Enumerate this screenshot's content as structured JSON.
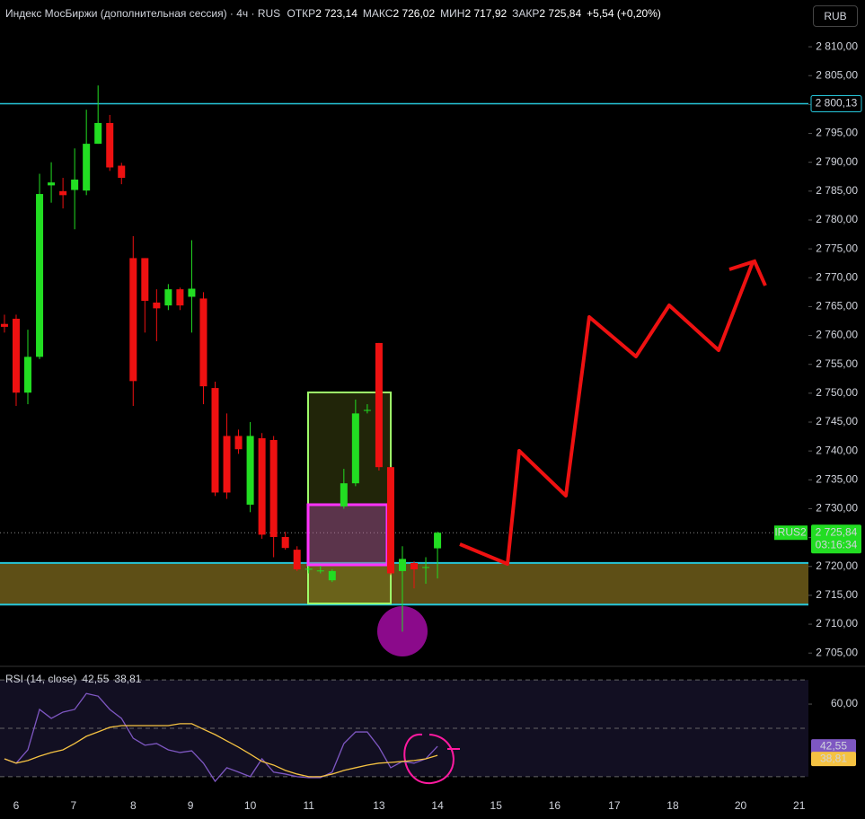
{
  "header": {
    "title": "Индекс МосБиржи (дополнительная сессия) · 4ч · RUS",
    "ohlc": [
      {
        "label": "ОТКР",
        "value": "2 723,14"
      },
      {
        "label": "МАКС",
        "value": "2 726,02"
      },
      {
        "label": "МИН",
        "value": "2 717,92"
      },
      {
        "label": "ЗАКР",
        "value": "2 725,84"
      }
    ],
    "change": "+5,54 (+0,20%)",
    "currency": "RUB"
  },
  "chart_data": [
    {
      "type": "candlestick",
      "x": [
        0,
        1,
        2,
        3,
        4,
        5,
        6,
        7,
        8,
        9,
        10,
        11,
        12,
        13,
        14,
        15,
        16,
        17,
        18,
        19,
        20,
        21,
        22,
        23,
        24,
        25,
        26,
        27,
        28,
        29,
        30,
        31,
        32,
        33,
        34,
        35,
        36,
        37
      ],
      "open": [
        2762.0,
        2762.9,
        2750.1,
        2756.3,
        2786.0,
        2785.0,
        2785.2,
        2785.1,
        2793.2,
        2796.8,
        2789.4,
        2773.4,
        2773.4,
        2765.7,
        2765.2,
        2768.0,
        2766.7,
        2766.4,
        2750.9,
        2742.6,
        2742.6,
        2730.7,
        2742.2,
        2741.9,
        2725.1,
        2722.9,
        2719.5,
        2719.2,
        2717.6,
        2730.4,
        2734.4,
        2747.0,
        2758.7,
        2737.2,
        2719.2,
        2720.6,
        2719.8,
        2723.14
      ],
      "high": [
        2763.6,
        2763.6,
        2761.0,
        2788.0,
        2790.0,
        2787.3,
        2792.4,
        2799.1,
        2803.3,
        2798.2,
        2789.9,
        2777.2,
        2773.4,
        2768.0,
        2768.9,
        2768.3,
        2776.5,
        2767.5,
        2752.0,
        2746.5,
        2743.7,
        2745.0,
        2743.1,
        2742.6,
        2726.0,
        2723.5,
        2720.1,
        2720.1,
        2719.5,
        2736.9,
        2748.9,
        2748.1,
        2758.7,
        2737.2,
        2723.5,
        2720.9,
        2721.6,
        2726.02
      ],
      "low": [
        2760.5,
        2747.8,
        2748.1,
        2755.9,
        2783.0,
        2782.0,
        2778.4,
        2784.3,
        2793.2,
        2788.5,
        2786.2,
        2747.8,
        2760.5,
        2759.0,
        2764.4,
        2764.4,
        2760.5,
        2748.1,
        2732.2,
        2731.7,
        2739.5,
        2729.4,
        2724.8,
        2721.6,
        2722.9,
        2719.2,
        2718.8,
        2718.8,
        2717.3,
        2730.0,
        2733.9,
        2746.5,
        2736.6,
        2718.5,
        2708.7,
        2716.2,
        2717.0,
        2717.92
      ],
      "close": [
        2761.5,
        2750.1,
        2756.3,
        2784.5,
        2786.5,
        2784.3,
        2787.0,
        2793.2,
        2796.8,
        2789.1,
        2787.3,
        2752.1,
        2766.0,
        2764.7,
        2768.0,
        2765.2,
        2768.1,
        2751.2,
        2732.8,
        2732.8,
        2740.3,
        2742.6,
        2725.5,
        2725.1,
        2723.2,
        2719.5,
        2719.6,
        2719.3,
        2719.2,
        2734.4,
        2746.5,
        2747.1,
        2737.2,
        2718.8,
        2721.3,
        2719.5,
        2719.9,
        2725.84
      ],
      "up_color": "#22dd22",
      "down_color": "#ee1111",
      "xlim": [
        -0.38,
        68.69
      ],
      "ylim": [
        2702.7,
        2818.1
      ],
      "xticks": [
        {
          "value": 1.0,
          "label": "6"
        },
        {
          "value": 5.9,
          "label": "7"
        },
        {
          "value": 11.0,
          "label": "8"
        },
        {
          "value": 15.9,
          "label": "9"
        },
        {
          "value": 21.0,
          "label": "10"
        },
        {
          "value": 26.0,
          "label": "11"
        },
        {
          "value": 32.0,
          "label": "13"
        },
        {
          "value": 37.0,
          "label": "14"
        },
        {
          "value": 42.0,
          "label": "15"
        },
        {
          "value": 47.0,
          "label": "16"
        },
        {
          "value": 52.1,
          "label": "17"
        },
        {
          "value": 57.1,
          "label": "18"
        },
        {
          "value": 62.9,
          "label": "20"
        },
        {
          "value": 67.9,
          "label": "21"
        }
      ],
      "yticks": [
        {
          "value": 2705,
          "label": "2 705,00"
        },
        {
          "value": 2710,
          "label": "2 710,00"
        },
        {
          "value": 2715,
          "label": "2 715,00"
        },
        {
          "value": 2720,
          "label": "2 720,00"
        },
        {
          "value": 2725,
          "label": "2 725,00"
        },
        {
          "value": 2730,
          "label": "2 730,00"
        },
        {
          "value": 2735,
          "label": "2 735,00"
        },
        {
          "value": 2740,
          "label": "2 740,00"
        },
        {
          "value": 2745,
          "label": "2 745,00"
        },
        {
          "value": 2750,
          "label": "2 750,00"
        },
        {
          "value": 2755,
          "label": "2 755,00"
        },
        {
          "value": 2760,
          "label": "2 760,00"
        },
        {
          "value": 2765,
          "label": "2 765,00"
        },
        {
          "value": 2770,
          "label": "2 770,00"
        },
        {
          "value": 2775,
          "label": "2 775,00"
        },
        {
          "value": 2780,
          "label": "2 780,00"
        },
        {
          "value": 2785,
          "label": "2 785,00"
        },
        {
          "value": 2790,
          "label": "2 790,00"
        },
        {
          "value": 2795,
          "label": "2 795,00"
        },
        {
          "value": 2800,
          "label": "2 800,00"
        },
        {
          "value": 2805,
          "label": "2 805,00"
        },
        {
          "value": 2810,
          "label": "2 810,00"
        }
      ],
      "level": {
        "value": 2800.13,
        "label": "2 800,13",
        "color": "#26c6da"
      },
      "zone": {
        "values": [
          2713.4,
          2720.6
        ],
        "color": "#26c6da"
      },
      "last_price": {
        "value": 2725.84,
        "label": "2 725,84",
        "symbol": "IRUS2",
        "countdown": "03:16:34"
      }
    },
    {
      "type": "line",
      "title": "RSI (14, close)",
      "x": [
        0,
        1,
        2,
        3,
        4,
        5,
        6,
        7,
        8,
        9,
        10,
        11,
        12,
        13,
        14,
        15,
        16,
        17,
        18,
        19,
        20,
        21,
        22,
        23,
        24,
        25,
        26,
        27,
        28,
        29,
        30,
        31,
        32,
        33,
        34,
        35,
        36,
        37
      ],
      "series": [
        {
          "color": "#7e57c2",
          "value_label": "42,55",
          "values": [
            37.4,
            35.6,
            41.1,
            57.8,
            54.1,
            56.7,
            57.8,
            64.4,
            63.3,
            57.8,
            54.1,
            45.9,
            43.0,
            43.7,
            41.1,
            40.0,
            40.7,
            35.6,
            28.1,
            33.7,
            31.9,
            30.0,
            37.4,
            31.9,
            31.1,
            30.0,
            29.6,
            29.6,
            31.9,
            43.7,
            48.5,
            48.5,
            42.2,
            33.7,
            36.3,
            35.6,
            37.4,
            42.55
          ]
        },
        {
          "color": "#f5c242",
          "value_label": "38,81",
          "values": [
            37.4,
            35.6,
            36.7,
            38.5,
            40.0,
            41.1,
            43.7,
            46.7,
            48.5,
            50.4,
            51.1,
            51.1,
            51.1,
            51.1,
            51.1,
            51.9,
            51.9,
            49.6,
            47.4,
            44.8,
            42.2,
            39.3,
            36.3,
            34.8,
            32.6,
            31.1,
            30.0,
            30.0,
            31.1,
            32.6,
            33.7,
            34.8,
            35.6,
            35.9,
            36.3,
            36.7,
            37.4,
            38.81
          ]
        }
      ],
      "xlim": [
        -0.38,
        68.69
      ],
      "ylim": [
        24.4,
        75.6
      ],
      "yticks": [
        {
          "value": 60,
          "label": "60,00"
        }
      ],
      "levels": [
        70,
        50,
        30
      ]
    }
  ]
}
